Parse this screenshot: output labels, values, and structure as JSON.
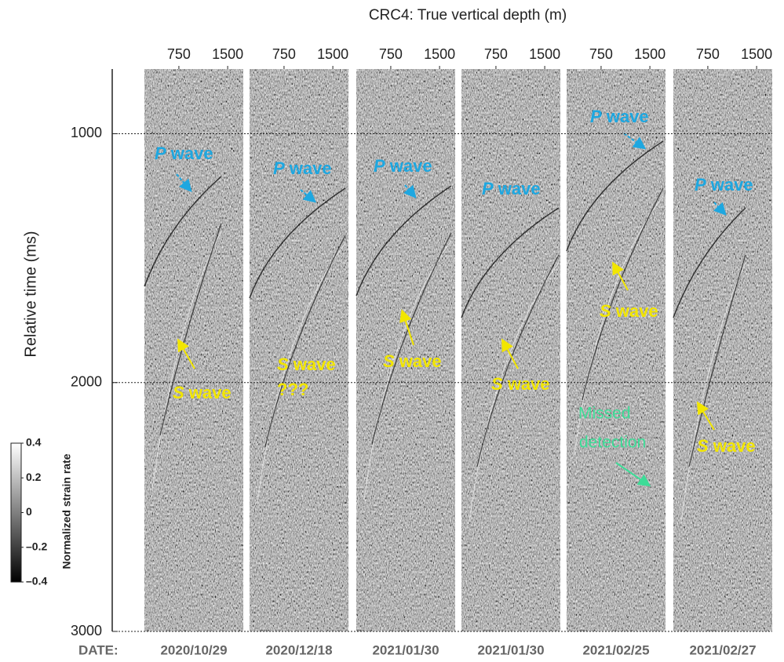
{
  "chart_data": {
    "type": "wiggle-panels",
    "title": "CRC4:  True vertical depth (m)",
    "y_label": "Relative time (ms)",
    "ylim": [
      740,
      3000
    ],
    "yticks": [
      1000,
      2000,
      3000
    ],
    "xlim": [
      220,
      1740
    ],
    "xticks": [
      750,
      1500
    ],
    "grid": true,
    "date_label": "DATE:",
    "panels": [
      {
        "date": "2020/10/29",
        "p_label": {
          "letter": "P",
          "word": "wave"
        },
        "s_label": {
          "letter": "S",
          "word": "wave"
        }
      },
      {
        "date": "2020/12/18",
        "p_label": {
          "letter": "P",
          "word": "wave"
        },
        "s_label": {
          "letter": "S",
          "word": "wave"
        },
        "s_note": "???"
      },
      {
        "date": "2021/01/30",
        "p_label": {
          "letter": "P",
          "word": "wave"
        },
        "s_label": {
          "letter": "S",
          "word": "wave"
        }
      },
      {
        "date": "2021/01/30",
        "p_label": {
          "letter": "P",
          "word": "wave"
        },
        "s_label": {
          "letter": "S",
          "word": "wave"
        }
      },
      {
        "date": "2021/02/25",
        "p_label": {
          "letter": "P",
          "word": "wave"
        },
        "s_label": {
          "letter": "S",
          "word": "wave"
        },
        "note": [
          "Missed",
          "detection"
        ]
      },
      {
        "date": "2021/02/27",
        "p_label": {
          "letter": "P",
          "word": "wave"
        },
        "s_label": {
          "letter": "S",
          "word": "wave"
        }
      }
    ],
    "colorbar": {
      "label": "Normalized strain rate",
      "lim": [
        -0.4,
        0.4
      ],
      "ticks": [
        0.4,
        0.2,
        0,
        {
          "value": -0.2,
          "label": "–0.2"
        },
        {
          "value": -0.4,
          "label": "–0.4"
        }
      ]
    }
  }
}
